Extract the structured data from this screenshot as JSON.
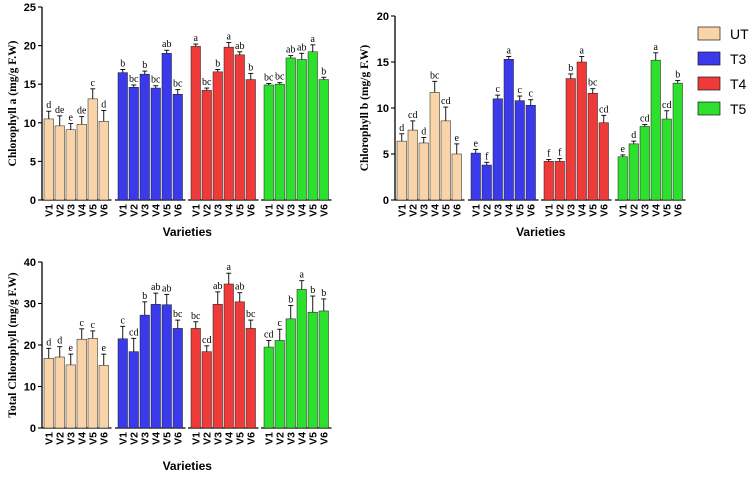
{
  "colors": {
    "UT": "#f8d4a8",
    "T3": "#3a3aea",
    "T4": "#ef3a3a",
    "T5": "#2ee02e"
  },
  "legend": {
    "items": [
      "UT",
      "T3",
      "T4",
      "T5"
    ],
    "position": "right"
  },
  "chart_data": [
    {
      "type": "bar",
      "ylabel": "Chlorophyll a (mg/g F.W)",
      "xlabel": "Varieties",
      "ylim": [
        0,
        25
      ],
      "yticks": [
        0,
        5,
        10,
        15,
        20,
        25
      ],
      "categories": [
        "V1",
        "V2",
        "V3",
        "V4",
        "V5",
        "V6"
      ],
      "series": [
        {
          "name": "UT",
          "values": [
            10.5,
            9.6,
            9.1,
            9.8,
            13.1,
            10.2
          ],
          "errors": [
            1.0,
            1.3,
            0.8,
            1.0,
            1.3,
            1.4
          ],
          "letters": [
            "d",
            "de",
            "e",
            "de",
            "c",
            "d"
          ]
        },
        {
          "name": "T3",
          "values": [
            16.5,
            14.6,
            16.3,
            14.5,
            19.0,
            13.7
          ],
          "errors": [
            0.4,
            0.3,
            0.4,
            0.3,
            0.4,
            0.6
          ],
          "letters": [
            "b",
            "bc",
            "b",
            "bc",
            "ab",
            "bc"
          ]
        },
        {
          "name": "T4",
          "values": [
            19.9,
            14.2,
            16.6,
            19.8,
            18.8,
            15.6
          ],
          "errors": [
            0.3,
            0.3,
            0.3,
            0.6,
            0.4,
            0.8
          ],
          "letters": [
            "a",
            "bc",
            "b",
            "a",
            "ab",
            "b"
          ]
        },
        {
          "name": "T5",
          "values": [
            14.9,
            15.0,
            18.4,
            18.2,
            19.2,
            15.6
          ],
          "errors": [
            0.2,
            0.2,
            0.3,
            0.8,
            0.9,
            0.3
          ],
          "letters": [
            "bc",
            "bc",
            "ab",
            "ab",
            "a",
            "b"
          ]
        }
      ]
    },
    {
      "type": "bar",
      "ylabel": "Chlorophyll b (mg/g F.W)",
      "xlabel": "Varieties",
      "ylim": [
        0,
        20
      ],
      "yticks": [
        0,
        5,
        10,
        15,
        20
      ],
      "categories": [
        "V1",
        "V2",
        "V3",
        "V4",
        "V5",
        "V6"
      ],
      "series": [
        {
          "name": "UT",
          "values": [
            6.4,
            7.6,
            6.2,
            11.7,
            8.6,
            5.0
          ],
          "errors": [
            0.8,
            1.0,
            0.6,
            1.2,
            1.5,
            1.1
          ],
          "letters": [
            "d",
            "cd",
            "d",
            "bc",
            "cd",
            "e"
          ]
        },
        {
          "name": "T3",
          "values": [
            5.1,
            3.8,
            11.0,
            15.3,
            10.8,
            10.3
          ],
          "errors": [
            0.4,
            0.3,
            0.4,
            0.3,
            0.5,
            0.6
          ],
          "letters": [
            "e",
            "f",
            "c",
            "a",
            "c",
            "c"
          ]
        },
        {
          "name": "T4",
          "values": [
            4.2,
            4.2,
            13.2,
            15.0,
            11.6,
            8.4
          ],
          "errors": [
            0.2,
            0.3,
            0.5,
            0.6,
            0.5,
            0.8
          ],
          "letters": [
            "f",
            "f",
            "b",
            "a",
            "bc",
            "cd"
          ]
        },
        {
          "name": "T5",
          "values": [
            4.7,
            6.1,
            8.0,
            15.2,
            8.8,
            12.7
          ],
          "errors": [
            0.2,
            0.3,
            0.2,
            0.8,
            0.9,
            0.3
          ],
          "letters": [
            "e",
            "d",
            "cd",
            "a",
            "cd",
            "b"
          ]
        }
      ]
    },
    {
      "type": "bar",
      "ylabel": "Total Chlorophyll (mg/g F.W)",
      "xlabel": "Varieties",
      "ylim": [
        0,
        40
      ],
      "yticks": [
        0,
        10,
        20,
        30,
        40
      ],
      "categories": [
        "V1",
        "V2",
        "V3",
        "V4",
        "V5",
        "V6"
      ],
      "series": [
        {
          "name": "UT",
          "values": [
            16.8,
            17.1,
            15.2,
            21.4,
            21.6,
            15.1
          ],
          "errors": [
            2.4,
            2.5,
            2.6,
            2.5,
            1.8,
            2.7
          ],
          "letters": [
            "d",
            "d",
            "e",
            "c",
            "c",
            "e"
          ]
        },
        {
          "name": "T3",
          "values": [
            21.5,
            18.4,
            27.2,
            29.8,
            29.7,
            24.0
          ],
          "errors": [
            3.0,
            3.2,
            3.2,
            2.7,
            2.5,
            2.0
          ],
          "letters": [
            "c",
            "cd",
            "b",
            "ab",
            "ab",
            "bc"
          ]
        },
        {
          "name": "T4",
          "values": [
            24.0,
            18.4,
            29.8,
            34.7,
            30.4,
            24.0
          ],
          "errors": [
            1.6,
            1.4,
            3.0,
            2.6,
            2.2,
            2.0
          ],
          "letters": [
            "bc",
            "cd",
            "ab",
            "a",
            "ab",
            "bc"
          ]
        },
        {
          "name": "T5",
          "values": [
            19.5,
            21.1,
            26.3,
            33.4,
            27.9,
            28.2
          ],
          "errors": [
            1.6,
            2.7,
            3.2,
            2.1,
            3.9,
            2.9
          ],
          "letters": [
            "cd",
            "c",
            "b",
            "a",
            "b",
            "b"
          ]
        }
      ]
    }
  ]
}
